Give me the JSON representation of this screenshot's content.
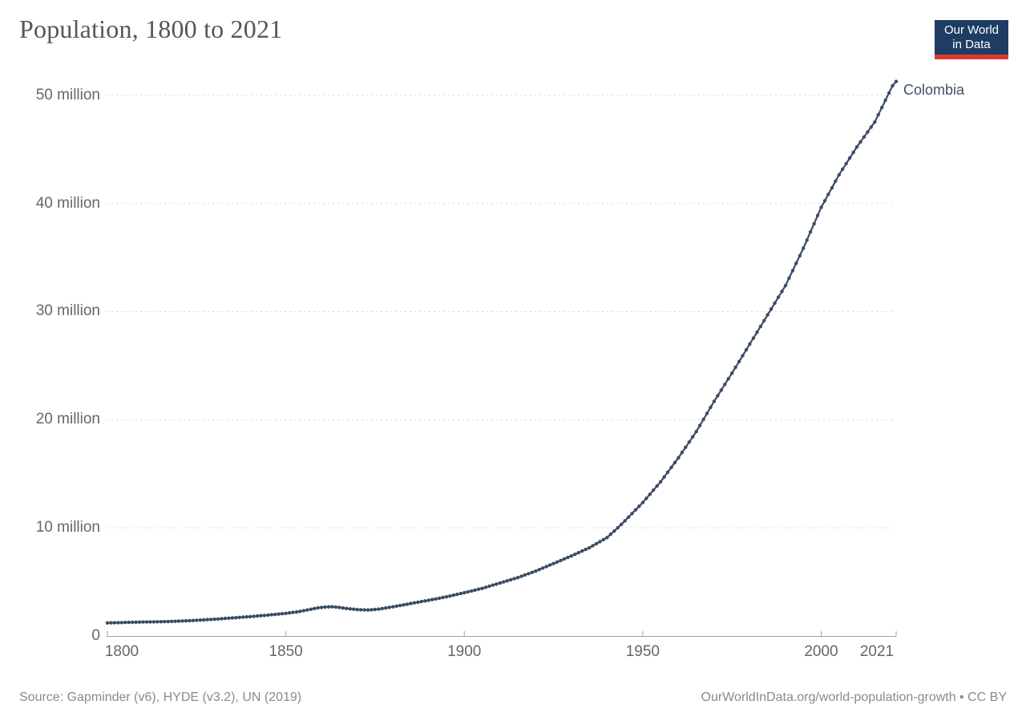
{
  "header": {
    "title": "Population, 1800 to 2021"
  },
  "logo": {
    "line1": "Our World",
    "line2": "in Data",
    "bg_color": "#1d3d63",
    "bar_color": "#d93b2a"
  },
  "chart_data": {
    "type": "line",
    "title": "Population, 1800 to 2021",
    "xlabel": "",
    "ylabel": "",
    "x": {
      "min": 1800,
      "max": 2021,
      "ticks": [
        1800,
        1850,
        1900,
        1950,
        2000,
        2021
      ]
    },
    "y": {
      "min": 0,
      "max": 52,
      "unit": "million",
      "ticks": [
        {
          "value": 0,
          "label": "0"
        },
        {
          "value": 10,
          "label": "10 million"
        },
        {
          "value": 20,
          "label": "20 million"
        },
        {
          "value": 30,
          "label": "30 million"
        },
        {
          "value": 40,
          "label": "40 million"
        },
        {
          "value": 50,
          "label": "50 million"
        }
      ]
    },
    "grid": "horizontal-dashed",
    "grid_color": "#d8d8d8",
    "axis_color": "#a3a3a3",
    "marker": "circle-every-year",
    "series": [
      {
        "name": "Colombia",
        "color": "#3b4c63",
        "label_color": "#3f5169",
        "points_millions": [
          [
            1800,
            1.21
          ],
          [
            1805,
            1.25
          ],
          [
            1810,
            1.29
          ],
          [
            1815,
            1.32
          ],
          [
            1820,
            1.37
          ],
          [
            1825,
            1.45
          ],
          [
            1830,
            1.55
          ],
          [
            1835,
            1.67
          ],
          [
            1840,
            1.79
          ],
          [
            1845,
            1.93
          ],
          [
            1850,
            2.09
          ],
          [
            1853,
            2.22
          ],
          [
            1856,
            2.4
          ],
          [
            1859,
            2.6
          ],
          [
            1861,
            2.68
          ],
          [
            1863,
            2.7
          ],
          [
            1865,
            2.64
          ],
          [
            1867,
            2.54
          ],
          [
            1870,
            2.44
          ],
          [
            1873,
            2.4
          ],
          [
            1876,
            2.48
          ],
          [
            1880,
            2.7
          ],
          [
            1885,
            3.0
          ],
          [
            1890,
            3.3
          ],
          [
            1895,
            3.62
          ],
          [
            1900,
            4.0
          ],
          [
            1905,
            4.4
          ],
          [
            1910,
            4.9
          ],
          [
            1915,
            5.4
          ],
          [
            1920,
            6.0
          ],
          [
            1925,
            6.7
          ],
          [
            1930,
            7.4
          ],
          [
            1935,
            8.15
          ],
          [
            1940,
            9.1
          ],
          [
            1943,
            10.0
          ],
          [
            1945,
            10.65
          ],
          [
            1950,
            12.34
          ],
          [
            1955,
            14.25
          ],
          [
            1960,
            16.48
          ],
          [
            1965,
            18.9
          ],
          [
            1970,
            21.7
          ],
          [
            1975,
            24.3
          ],
          [
            1980,
            27.0
          ],
          [
            1985,
            29.7
          ],
          [
            1990,
            32.4
          ],
          [
            1995,
            35.85
          ],
          [
            2000,
            39.63
          ],
          [
            2005,
            42.65
          ],
          [
            2010,
            45.22
          ],
          [
            2015,
            47.52
          ],
          [
            2020,
            50.88
          ],
          [
            2021,
            51.27
          ]
        ],
        "note": "values in millions of people; chart shows one dot per year, interpolated between anchors"
      }
    ]
  },
  "footer": {
    "source": "Source: Gapminder (v6), HYDE (v3.2), UN (2019)",
    "link": "OurWorldInData.org/world-population-growth • CC BY"
  }
}
